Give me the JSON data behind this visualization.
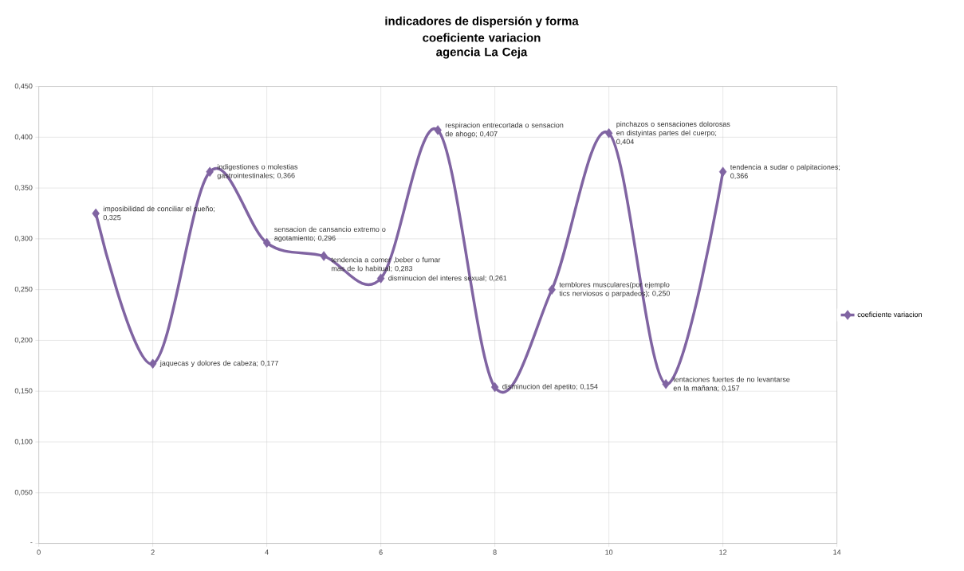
{
  "chart_data": {
    "type": "line",
    "title": "indicadores de dispersión y forma",
    "subtitle": "coeficiente variacion agencia La Ceja",
    "x": [
      1,
      2,
      3,
      4,
      5,
      6,
      7,
      8,
      9,
      10,
      11,
      12
    ],
    "series": [
      {
        "name": "coeficiente variacion",
        "color": "#8064a2",
        "values": [
          0.325,
          0.177,
          0.366,
          0.296,
          0.283,
          0.261,
          0.407,
          0.154,
          0.25,
          0.404,
          0.157,
          0.366
        ]
      }
    ],
    "xlim": [
      0,
      14
    ],
    "xticks": [
      0,
      2,
      4,
      6,
      8,
      10,
      12,
      14
    ],
    "ylim": [
      0,
      0.45
    ],
    "yticks": [
      {
        "value": 0,
        "label": "-"
      },
      {
        "value": 0.05,
        "label": "0,050"
      },
      {
        "value": 0.1,
        "label": "0,100"
      },
      {
        "value": 0.15,
        "label": "0,150"
      },
      {
        "value": 0.2,
        "label": "0,200"
      },
      {
        "value": 0.25,
        "label": "0,250"
      },
      {
        "value": 0.3,
        "label": "0,300"
      },
      {
        "value": 0.35,
        "label": "0,350"
      },
      {
        "value": 0.4,
        "label": "0,400"
      },
      {
        "value": 0.45,
        "label": "0,450"
      }
    ],
    "grid": true,
    "legend": "right",
    "marker": "diamond",
    "line_style": "solid",
    "annotations": [
      {
        "text": "imposibilidad de conciliar el sueño;  0,325",
        "x": 1,
        "y": 0.325
      },
      {
        "text": "jaquecas y dolores de cabeza;  0,177",
        "x": 2,
        "y": 0.177
      },
      {
        "text": "indigestiones o molestias gastrointestinales;  0,366",
        "x": 3,
        "y": 0.366
      },
      {
        "text": "sensacion de cansancio extremo o agotamiento;  0,296",
        "x": 4,
        "y": 0.296
      },
      {
        "text": "tendencia a comer ,beber  o fumar mas de lo habitual;  0,283",
        "x": 5,
        "y": 0.283
      },
      {
        "text": "disminucion del interes sexual;  0,261",
        "x": 6,
        "y": 0.261
      },
      {
        "text": "respiracion entrecortada o sensacion de ahogo;  0,407",
        "x": 7,
        "y": 0.407
      },
      {
        "text": "disminucion del apetito;  0,154",
        "x": 8,
        "y": 0.154
      },
      {
        "text": "temblores musculares(por ejemplo tics nerviosos o parpadeos);  0,250",
        "x": 9,
        "y": 0.25
      },
      {
        "text": "pinchazos o sensaciones  dolorosas en distyintas partes del cuerpo;  0,404",
        "x": 10,
        "y": 0.404
      },
      {
        "text": "tentaciones fuertes de no levantarse en la mañana;  0,157",
        "x": 11,
        "y": 0.157
      },
      {
        "text": "tendencia a sudar o palpitaciones;  0,366",
        "x": 12,
        "y": 0.366
      }
    ]
  }
}
